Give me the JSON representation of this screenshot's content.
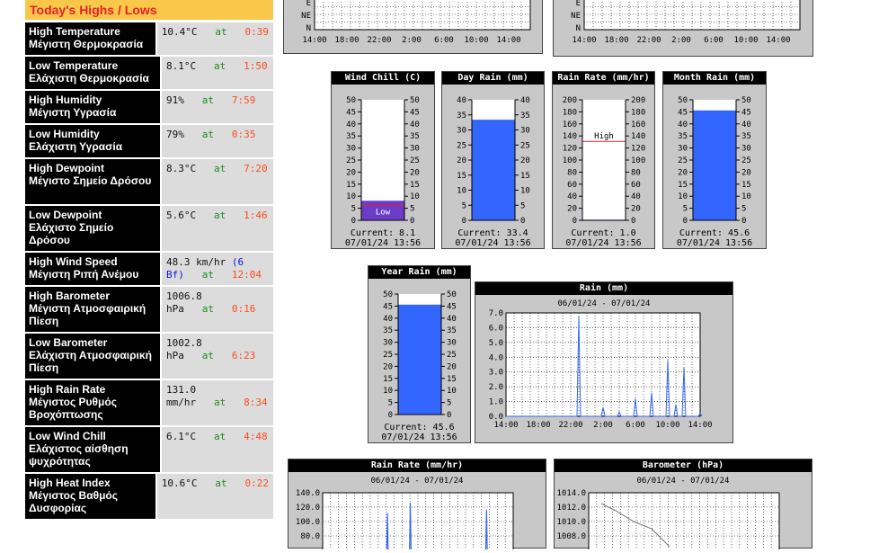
{
  "highs_lows": {
    "title": "Today's Highs / Lows",
    "rows": [
      {
        "label_en": "High Temperature",
        "label_gr": "Μέγιστη Θερμοκρασία",
        "value": "10.4°C",
        "at": "at",
        "time": "0:39"
      },
      {
        "label_en": "Low Temperature",
        "label_gr": "Ελάχιστη Θερμοκρασία",
        "value": "8.1°C",
        "at": "at",
        "time": "1:50"
      },
      {
        "label_en": "High Humidity",
        "label_gr": "Μέγιστη Υγρασία",
        "value": "91%",
        "at": "at",
        "time": "7:59"
      },
      {
        "label_en": "Low Humidity",
        "label_gr": "Ελάχιστη Υγρασία",
        "value": "79%",
        "at": "at",
        "time": "0:35"
      },
      {
        "label_en": "High Dewpoint",
        "label_gr": "Μέγιστο Σημείο Δρόσου",
        "value": "8.3°C",
        "at": "at",
        "time": "7:20"
      },
      {
        "label_en": "Low Dewpoint",
        "label_gr": "Ελάχιστο Σημείο Δρόσου",
        "value": "5.6°C",
        "at": "at",
        "time": "1:46"
      },
      {
        "label_en": "High Wind Speed",
        "label_gr": "Μέγιστη Ριπή Ανέμου",
        "value": "48.3 km/hr",
        "bf": "(6 Bf)",
        "at": "at",
        "time": "12:04"
      },
      {
        "label_en": "High Barometer",
        "label_gr": "Μέγιστη Ατμοσφαιρική Πίεση",
        "value": "1006.8 hPa",
        "at": "at",
        "time": "0:16"
      },
      {
        "label_en": "Low Barometer",
        "label_gr": "Ελάχιστη Ατμοσφαιρική Πίεση",
        "value": "1002.8 hPa",
        "at": "at",
        "time": "6:23"
      },
      {
        "label_en": "High Rain Rate",
        "label_gr": "Μέγιστος Ρυθμός Βροχόπτωσης",
        "value": "131.0 mm/hr",
        "at": "at",
        "time": "8:34"
      },
      {
        "label_en": "Low Wind Chill",
        "label_gr": "Ελάχιστος αίσθηση ψυχρότητας",
        "value": "6.1°C",
        "at": "at",
        "time": "4:48"
      },
      {
        "label_en": "High Heat Index",
        "label_gr": "Μέγιστος Βαθμός Δυσφορίας",
        "value": "10.6°C",
        "at": "at",
        "time": "0:22"
      }
    ]
  },
  "top_graphs": {
    "left": {
      "ylabels": [
        "E",
        "NE",
        "N"
      ],
      "xlabels": [
        "14:00",
        "18:00",
        "22:00",
        "2:00",
        "6:00",
        "10:00",
        "14:00"
      ]
    },
    "right": {
      "ylabels": [
        "E",
        "NE",
        "N"
      ],
      "xlabels": [
        "14:00",
        "18:00",
        "22:00",
        "2:00",
        "6:00",
        "10:00",
        "14:00"
      ]
    }
  },
  "bar_gauges": [
    {
      "title": "Wind Chill (C)",
      "ticks": [
        "50",
        "45",
        "40",
        "35",
        "30",
        "25",
        "20",
        "15",
        "10",
        "5",
        "0"
      ],
      "max": 50,
      "value": 8.1,
      "fill": "#6a3cc8",
      "marker_label": "Low",
      "marker_value": 6.1,
      "current_label": "Current: 8.1",
      "date": "07/01/24 13:56"
    },
    {
      "title": "Day Rain (mm)",
      "ticks": [
        "40",
        "35",
        "30",
        "25",
        "20",
        "15",
        "10",
        "5",
        "0"
      ],
      "max": 40,
      "value": 33.4,
      "fill": "#3366ff",
      "current_label": "Current: 33.4",
      "date": "07/01/24 13:56"
    },
    {
      "title": "Rain Rate (mm/hr)",
      "ticks": [
        "200",
        "180",
        "160",
        "140",
        "120",
        "100",
        "80",
        "60",
        "40",
        "20",
        "0"
      ],
      "max": 200,
      "value": 1.0,
      "fill": "#3366ff",
      "marker_label": "High",
      "marker_value": 131.0,
      "current_label": "Current: 1.0",
      "date": "07/01/24 13:56"
    },
    {
      "title": "Month Rain (mm)",
      "ticks": [
        "50",
        "45",
        "40",
        "35",
        "30",
        "25",
        "20",
        "15",
        "10",
        "5",
        "0"
      ],
      "max": 50,
      "value": 45.6,
      "fill": "#3366ff",
      "current_label": "Current: 45.6",
      "date": "07/01/24 13:56"
    },
    {
      "title": "Year Rain (mm)",
      "ticks": [
        "50",
        "45",
        "40",
        "35",
        "30",
        "25",
        "20",
        "15",
        "10",
        "5",
        "0"
      ],
      "max": 50,
      "value": 45.6,
      "fill": "#3366ff",
      "current_label": "Current: 45.6",
      "date": "07/01/24 13:56"
    }
  ],
  "rain_graph": {
    "title": "Rain (mm)",
    "date_range": "06/01/24 - 07/01/24",
    "ylabels": [
      "7.0",
      "6.0",
      "5.0",
      "4.0",
      "3.0",
      "2.0",
      "1.0",
      "0.0"
    ],
    "xlabels": [
      "14:00",
      "18:00",
      "22:00",
      "2:00",
      "6:00",
      "10:00",
      "14:00"
    ],
    "chart_data": {
      "type": "line",
      "x": [
        "14:00",
        "18:00",
        "22:00",
        "23:00",
        "2:00",
        "4:00",
        "6:00",
        "8:00",
        "10:00",
        "11:00",
        "12:00",
        "14:00"
      ],
      "values": [
        0,
        0,
        0,
        6.8,
        0.6,
        0.3,
        1.2,
        1.6,
        3.8,
        0.8,
        3.3,
        0.2
      ],
      "ylim": [
        0,
        7
      ]
    }
  },
  "rain_rate_graph": {
    "title": "Rain Rate (mm/hr)",
    "date_range": "06/01/24 - 07/01/24",
    "ylabels": [
      "140.0",
      "120.0",
      "100.0",
      "80.0"
    ]
  },
  "barometer_graph": {
    "title": "Barometer (hPa)",
    "date_range": "06/01/24 - 07/01/24",
    "ylabels": [
      "1014.0",
      "1012.0",
      "1010.0",
      "1008.0"
    ]
  },
  "colors": {
    "title_bg": "#f9c84a",
    "title_text": "#e8202a",
    "at": "#1d8a1d",
    "time": "#ff4b1f",
    "panel_bg": "#c8c8c8",
    "rain_fill": "#3366ff"
  }
}
